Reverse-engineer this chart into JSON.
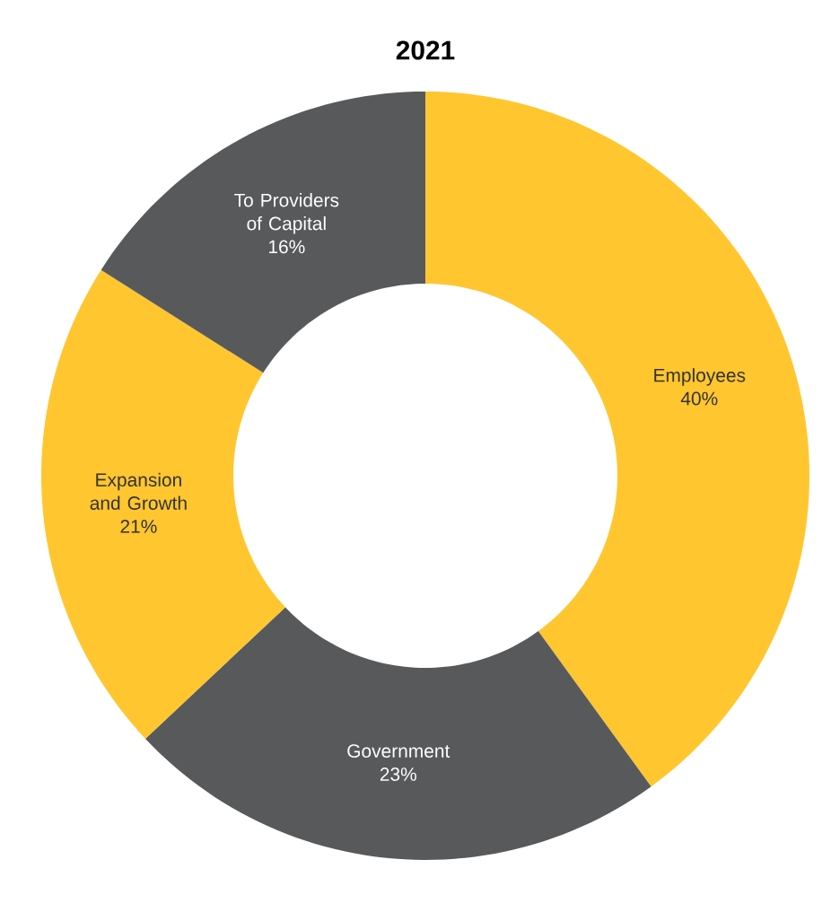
{
  "chart_data": {
    "type": "donut",
    "title": "2021",
    "categories": [
      "Employees",
      "Government",
      "Expansion and Growth",
      "To Providers of Capital"
    ],
    "values": [
      40,
      23,
      21,
      16
    ],
    "value_labels": [
      "40%",
      "23%",
      "21%",
      "16%"
    ],
    "colors": [
      "#ffc62f",
      "#58595b",
      "#ffc62f",
      "#58595b"
    ]
  }
}
